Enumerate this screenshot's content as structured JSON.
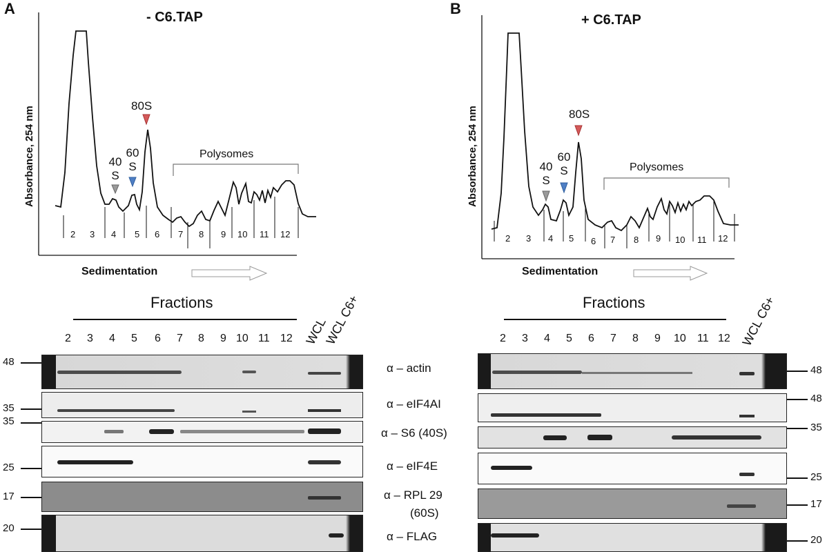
{
  "panels": [
    {
      "letter": "A",
      "condition": "- C6.TAP",
      "ylabel": "Absorbance, 254 nm",
      "xlabel": "Sedimentation",
      "peaks": {
        "s40a": "40",
        "s40b": "S",
        "s60a": "60",
        "s60b": "S",
        "s80": "80S"
      },
      "polysomes": "Polysomes",
      "profile_fractions": [
        "2",
        "3",
        "4",
        "5",
        "6",
        "7",
        "8",
        "9",
        "10",
        "11",
        "12"
      ],
      "fractions_title": "Fractions",
      "lanes": [
        "2",
        "3",
        "4",
        "5",
        "6",
        "7",
        "8",
        "9",
        "10",
        "11",
        "12"
      ],
      "wcl": "WCL",
      "wcl_c6": "WCL C6+",
      "mw": [
        "48",
        "35",
        "35",
        "25",
        "17",
        "20"
      ]
    },
    {
      "letter": "B",
      "condition": "+ C6.TAP",
      "ylabel": "Absorbance, 254 nm",
      "xlabel": "Sedimentation",
      "peaks": {
        "s40a": "40",
        "s40b": "S",
        "s60a": "60",
        "s60b": "S",
        "s80": "80S"
      },
      "polysomes": "Polysomes",
      "profile_fractions": [
        "2",
        "3",
        "4",
        "5",
        "6",
        "7",
        "8",
        "9",
        "10",
        "11",
        "12"
      ],
      "fractions_title": "Fractions",
      "lanes": [
        "2",
        "3",
        "4",
        "5",
        "6",
        "7",
        "8",
        "9",
        "10",
        "11",
        "12"
      ],
      "wcl": "WCL C6+",
      "mw": [
        "48",
        "48",
        "35",
        "25",
        "17",
        "20"
      ]
    }
  ],
  "antibodies": [
    "α – actin",
    "α – eIF4AI",
    "α – S6 (40S)",
    "α – eIF4E",
    "α – RPL 29",
    "(60S)",
    "α – FLAG"
  ],
  "colors": {
    "s40_marker": "#9a9a9a",
    "s60_marker": "#4f7fc4",
    "s80_marker": "#d45a5a",
    "trace": "#111111"
  }
}
